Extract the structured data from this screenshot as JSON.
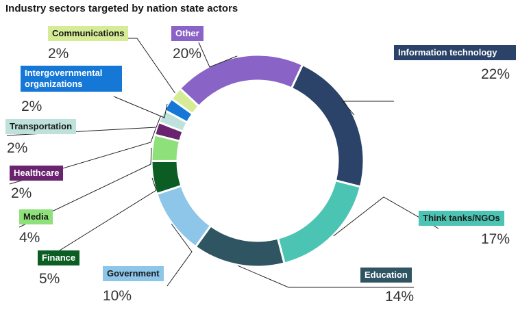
{
  "chart_data": {
    "type": "pie",
    "title": "Industry sectors targeted by nation state actors",
    "slices": [
      {
        "label": "Information technology",
        "value": 22,
        "pct": "22%",
        "color": "#2b4269",
        "text": "#ffffff"
      },
      {
        "label": "Think tanks/NGOs",
        "value": 17,
        "pct": "17%",
        "color": "#4cc4b3",
        "text": "#1a1a1a"
      },
      {
        "label": "Education",
        "value": 14,
        "pct": "14%",
        "color": "#2f5563",
        "text": "#ffffff"
      },
      {
        "label": "Government",
        "value": 10,
        "pct": "10%",
        "color": "#8dc6e8",
        "text": "#1a1a1a"
      },
      {
        "label": "Finance",
        "value": 5,
        "pct": "5%",
        "color": "#0b5d24",
        "text": "#ffffff"
      },
      {
        "label": "Media",
        "value": 4,
        "pct": "4%",
        "color": "#8ee07a",
        "text": "#1a1a1a"
      },
      {
        "label": "Healthcare",
        "value": 2,
        "pct": "2%",
        "color": "#6a236f",
        "text": "#ffffff"
      },
      {
        "label": "Transportation",
        "value": 2,
        "pct": "2%",
        "color": "#bfe1db",
        "text": "#1a1a1a"
      },
      {
        "label": "Intergovernmental organizations",
        "value": 2,
        "pct": "2%",
        "color": "#1577d6",
        "text": "#ffffff"
      },
      {
        "label": "Communications",
        "value": 2,
        "pct": "2%",
        "color": "#d6eb96",
        "text": "#1a1a1a"
      },
      {
        "label": "Other",
        "value": 20,
        "pct": "20%",
        "color": "#8a63c7",
        "text": "#ffffff"
      }
    ]
  }
}
